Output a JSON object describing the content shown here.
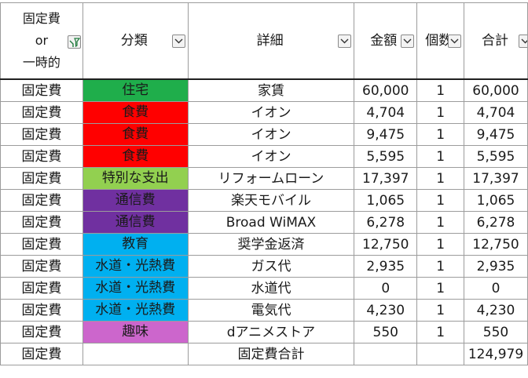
{
  "header": {
    "type_line1": "固定費",
    "type_line2": "or",
    "type_line3": "一時的",
    "category": "分類",
    "detail": "詳細",
    "amount": "金額",
    "count": "個数",
    "total": "合計"
  },
  "rows": [
    {
      "type": "固定費",
      "category": "住宅",
      "category_color": "#1fae4b",
      "detail": "家賃",
      "amount": "60,000",
      "count": "1",
      "total": "60,000"
    },
    {
      "type": "固定費",
      "category": "食費",
      "category_color": "#ff0000",
      "detail": "イオン",
      "amount": "4,704",
      "count": "1",
      "total": "4,704"
    },
    {
      "type": "固定費",
      "category": "食費",
      "category_color": "#ff0000",
      "detail": "イオン",
      "amount": "9,475",
      "count": "1",
      "total": "9,475"
    },
    {
      "type": "固定費",
      "category": "食費",
      "category_color": "#ff0000",
      "detail": "イオン",
      "amount": "5,595",
      "count": "1",
      "total": "5,595"
    },
    {
      "type": "固定費",
      "category": "特別な支出",
      "category_color": "#92d050",
      "detail": "リフォームローン",
      "amount": "17,397",
      "count": "1",
      "total": "17,397"
    },
    {
      "type": "固定費",
      "category": "通信費",
      "category_color": "#7030a0",
      "detail": "楽天モバイル",
      "amount": "1,065",
      "count": "1",
      "total": "1,065"
    },
    {
      "type": "固定費",
      "category": "通信費",
      "category_color": "#7030a0",
      "detail": "Broad WiMAX",
      "amount": "6,278",
      "count": "1",
      "total": "6,278"
    },
    {
      "type": "固定費",
      "category": "教育",
      "category_color": "#00b0f0",
      "detail": "奨学金返済",
      "amount": "12,750",
      "count": "1",
      "total": "12,750"
    },
    {
      "type": "固定費",
      "category": "水道・光熱費",
      "category_color": "#00b0f0",
      "detail": "ガス代",
      "amount": "2,935",
      "count": "1",
      "total": "2,935"
    },
    {
      "type": "固定費",
      "category": "水道・光熱費",
      "category_color": "#00b0f0",
      "detail": "水道代",
      "amount": "0",
      "count": "1",
      "total": "0"
    },
    {
      "type": "固定費",
      "category": "水道・光熱費",
      "category_color": "#00b0f0",
      "detail": "電気代",
      "amount": "4,230",
      "count": "1",
      "total": "4,230"
    },
    {
      "type": "固定費",
      "category": "趣味",
      "category_color": "#cc66cc",
      "detail": "dアニメストア",
      "amount": "550",
      "count": "1",
      "total": "550"
    }
  ],
  "summary": {
    "type": "固定費",
    "label": "固定費合計",
    "total": "124,979"
  },
  "colors": {
    "grid": "#9c9c9c",
    "filter_arrow": "#333333",
    "filter_active": "#1f7a3c"
  }
}
